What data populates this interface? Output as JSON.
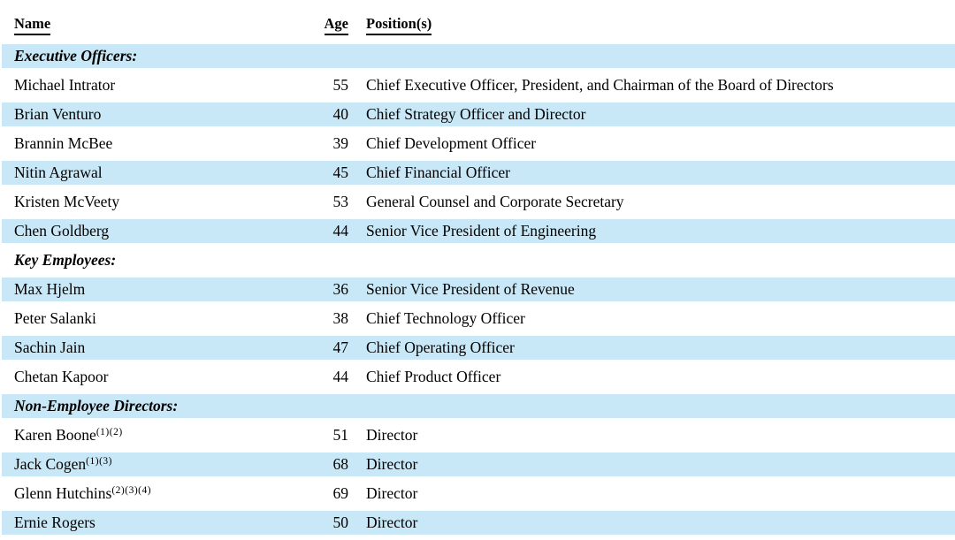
{
  "table": {
    "header": {
      "name": "Name",
      "age": "Age",
      "position": "Position(s)"
    },
    "rows": [
      {
        "type": "section",
        "label": "Executive Officers:"
      },
      {
        "type": "person",
        "name": "Michael Intrator",
        "footnotes": "",
        "age": "55",
        "position": "Chief Executive Officer, President, and Chairman of the Board of Directors"
      },
      {
        "type": "person",
        "name": "Brian Venturo",
        "footnotes": "",
        "age": "40",
        "position": "Chief Strategy Officer and Director"
      },
      {
        "type": "person",
        "name": "Brannin McBee",
        "footnotes": "",
        "age": "39",
        "position": "Chief Development Officer"
      },
      {
        "type": "person",
        "name": "Nitin Agrawal",
        "footnotes": "",
        "age": "45",
        "position": "Chief Financial Officer"
      },
      {
        "type": "person",
        "name": "Kristen McVeety",
        "footnotes": "",
        "age": "53",
        "position": "General Counsel and Corporate Secretary"
      },
      {
        "type": "person",
        "name": "Chen Goldberg",
        "footnotes": "",
        "age": "44",
        "position": "Senior Vice President of Engineering"
      },
      {
        "type": "section",
        "label": "Key Employees:"
      },
      {
        "type": "person",
        "name": "Max Hjelm",
        "footnotes": "",
        "age": "36",
        "position": "Senior Vice President of Revenue"
      },
      {
        "type": "person",
        "name": "Peter Salanki",
        "footnotes": "",
        "age": "38",
        "position": "Chief Technology Officer"
      },
      {
        "type": "person",
        "name": "Sachin Jain",
        "footnotes": "",
        "age": "47",
        "position": "Chief Operating Officer"
      },
      {
        "type": "person",
        "name": "Chetan Kapoor",
        "footnotes": "",
        "age": "44",
        "position": "Chief Product Officer"
      },
      {
        "type": "section",
        "label": "Non-Employee Directors:"
      },
      {
        "type": "person",
        "name": "Karen Boone",
        "footnotes": "(1)(2)",
        "age": "51",
        "position": "Director"
      },
      {
        "type": "person",
        "name": "Jack Cogen",
        "footnotes": "(1)(3)",
        "age": "68",
        "position": "Director"
      },
      {
        "type": "person",
        "name": "Glenn Hutchins",
        "footnotes": "(2)(3)(4)",
        "age": "69",
        "position": "Director"
      },
      {
        "type": "person",
        "name": "Ernie Rogers",
        "footnotes": "",
        "age": "50",
        "position": "Director"
      }
    ]
  },
  "colors": {
    "row_highlight": "#c9e8f7",
    "text": "#000000",
    "background": "#ffffff"
  }
}
